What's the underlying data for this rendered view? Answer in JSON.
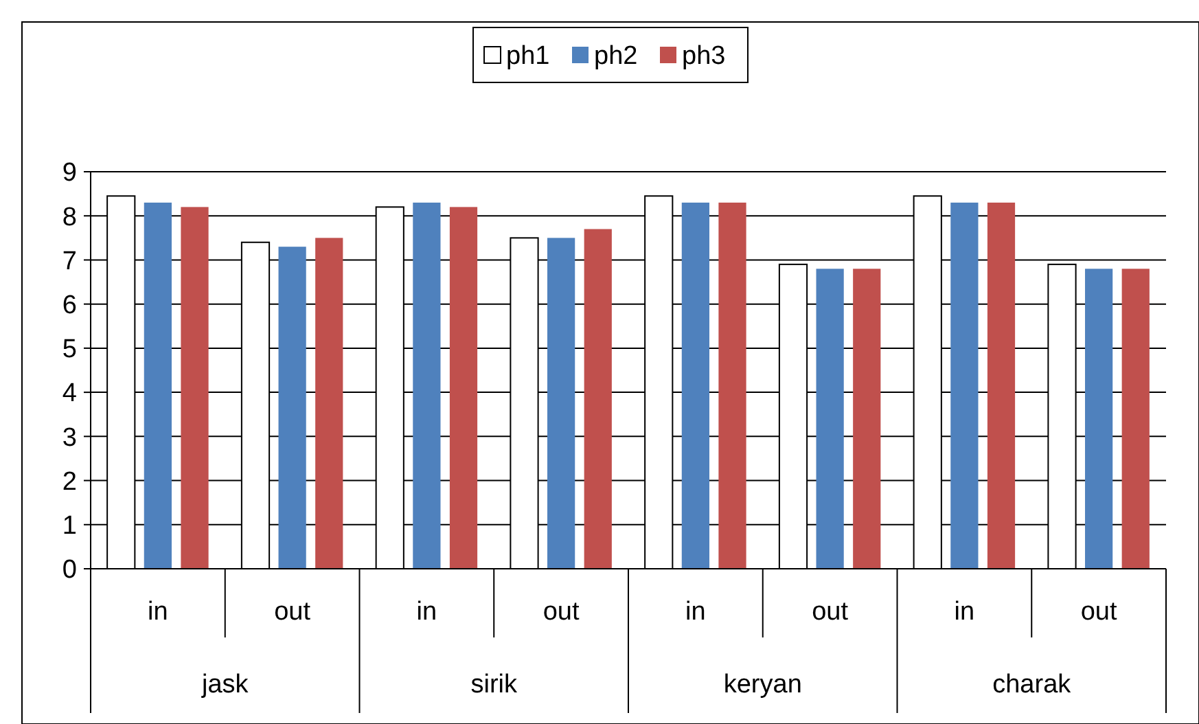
{
  "chart_data": {
    "type": "bar",
    "categories": [
      "in",
      "out",
      "in",
      "out",
      "in",
      "out",
      "in",
      "out"
    ],
    "annotations": [
      "jask",
      "sirik",
      "keryan",
      "charak"
    ],
    "series": [
      {
        "name": "ph1",
        "color": "#ffffff",
        "values": [
          8.45,
          7.4,
          8.2,
          7.5,
          8.45,
          6.9,
          8.45,
          6.9
        ]
      },
      {
        "name": "ph2",
        "color": "#4f81bd",
        "values": [
          8.3,
          7.3,
          8.3,
          7.5,
          8.3,
          6.8,
          8.3,
          6.8
        ]
      },
      {
        "name": "ph3",
        "color": "#c0504d",
        "values": [
          8.2,
          7.5,
          8.2,
          7.7,
          8.3,
          6.8,
          8.3,
          6.8
        ]
      }
    ],
    "ylim": [
      0,
      9
    ],
    "yticks": [
      0,
      1,
      2,
      3,
      4,
      5,
      6,
      7,
      8,
      9
    ],
    "grid": "y",
    "legend": "top"
  }
}
